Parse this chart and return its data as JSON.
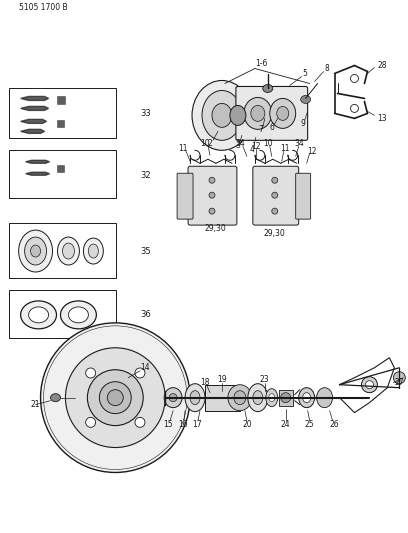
{
  "bg_color": "#ffffff",
  "line_color": "#1a1a1a",
  "title": "5105 1700 B",
  "figsize": [
    4.08,
    5.33
  ],
  "dpi": 100
}
